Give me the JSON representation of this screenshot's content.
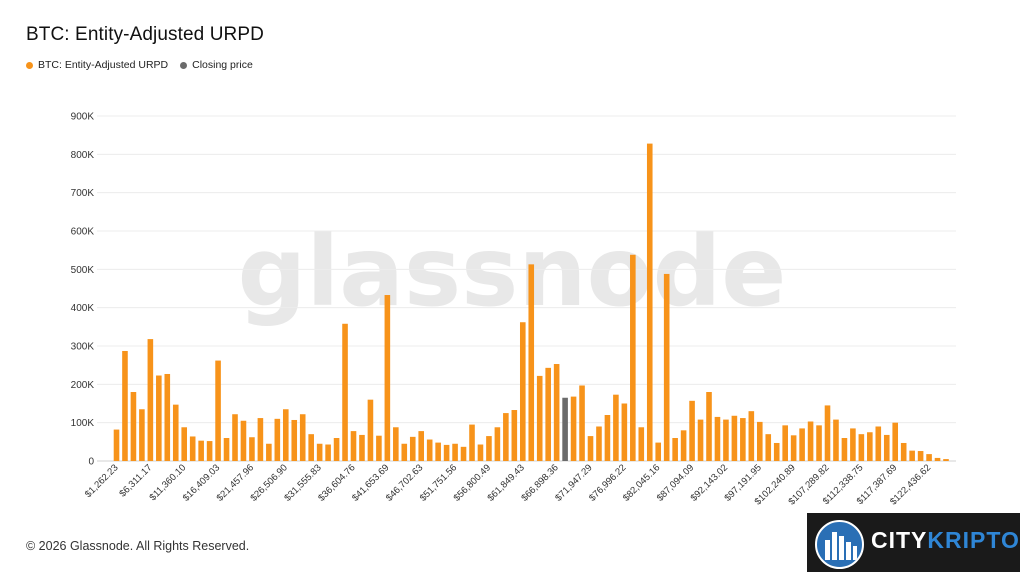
{
  "header": {
    "title": "BTC: Entity-Adjusted URPD"
  },
  "legend": {
    "items": [
      {
        "label": "BTC: Entity-Adjusted URPD",
        "color": "#f7931a"
      },
      {
        "label": "Closing price",
        "color": "#6b6b6b"
      }
    ]
  },
  "footer": {
    "copyright": "© 2026 Glassnode. All Rights Reserved."
  },
  "watermark": {
    "text": "glassnode"
  },
  "badge": {
    "part1": "CITY",
    "part2": "KRIPTO",
    "icon": "city-skyline-icon"
  },
  "chart_data": {
    "type": "bar",
    "title": "BTC: Entity-Adjusted URPD",
    "y_ticks": [
      "0",
      "100K",
      "200K",
      "300K",
      "400K",
      "500K",
      "600K",
      "700K",
      "800K",
      "900K"
    ],
    "ylim": [
      0,
      900000
    ],
    "grid": true,
    "legend_position": "top-left",
    "x_tick_labels": [
      "$1,262.23",
      "$6,311.17",
      "$11,360.10",
      "$16,409.03",
      "$21,457.96",
      "$26,506.90",
      "$31,555.83",
      "$36,604.76",
      "$41,653.69",
      "$46,702.63",
      "$51,751.56",
      "$56,800.49",
      "$61,849.43",
      "$66,898.36",
      "$71,947.29",
      "$76,996.22",
      "$82,045.16",
      "$87,094.09",
      "$92,143.02",
      "$97,191.95",
      "$102,240.89",
      "$107,289.82",
      "$112,338.75",
      "$117,387.69",
      "$122,436.62"
    ],
    "closing_price_bucket_index": 53,
    "values": [
      82000,
      287000,
      180000,
      135000,
      318000,
      223000,
      227000,
      147000,
      88000,
      64000,
      53000,
      52000,
      262000,
      60000,
      122000,
      105000,
      62000,
      112000,
      45000,
      110000,
      135000,
      107000,
      122000,
      70000,
      45000,
      43000,
      60000,
      358000,
      78000,
      68000,
      160000,
      66000,
      433000,
      88000,
      45000,
      63000,
      78000,
      56000,
      48000,
      42000,
      45000,
      37000,
      95000,
      43000,
      65000,
      88000,
      125000,
      133000,
      362000,
      513000,
      222000,
      243000,
      253000,
      165000,
      168000,
      197000,
      65000,
      90000,
      120000,
      173000,
      150000,
      538000,
      88000,
      828000,
      48000,
      488000,
      60000,
      80000,
      157000,
      108000,
      180000,
      115000,
      108000,
      118000,
      112000,
      130000,
      102000,
      70000,
      47000,
      93000,
      67000,
      85000,
      103000,
      93000,
      145000,
      108000,
      60000,
      85000,
      70000,
      75000,
      90000,
      68000,
      100000,
      47000,
      27000,
      26000,
      18000,
      8000,
      5000
    ]
  }
}
